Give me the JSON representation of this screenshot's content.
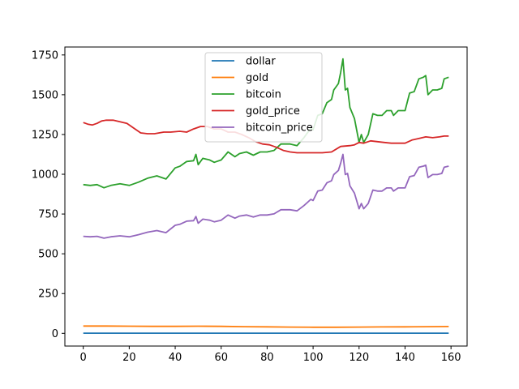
{
  "chart_data": {
    "type": "line",
    "title": "",
    "xlabel": "",
    "ylabel": "",
    "xlim": [
      -8,
      167
    ],
    "ylim": [
      -80,
      1800
    ],
    "xticks": [
      0,
      20,
      40,
      60,
      80,
      100,
      120,
      140,
      160
    ],
    "yticks": [
      0,
      250,
      500,
      750,
      1000,
      1250,
      1500,
      1750
    ],
    "legend_position": "top-center",
    "grid": false,
    "series": [
      {
        "name": "dollar",
        "color": "#1f77b4",
        "x": [
          0,
          20,
          40,
          60,
          80,
          100,
          120,
          140,
          159
        ],
        "y": [
          1,
          1,
          1,
          1,
          1,
          1,
          1,
          1,
          1
        ]
      },
      {
        "name": "gold",
        "color": "#ff7f0e",
        "x": [
          0,
          10,
          20,
          30,
          40,
          50,
          60,
          70,
          80,
          90,
          100,
          110,
          120,
          130,
          140,
          150,
          159
        ],
        "y": [
          46,
          46,
          45,
          44,
          44,
          45,
          44,
          42,
          41,
          39,
          38,
          38,
          39,
          40,
          41,
          42,
          43
        ]
      },
      {
        "name": "bitcoin",
        "color": "#2ca02c",
        "x": [
          0,
          3,
          6,
          9,
          12,
          16,
          20,
          24,
          28,
          32,
          36,
          40,
          42,
          45,
          48,
          49,
          50,
          52,
          55,
          57,
          60,
          63,
          66,
          68,
          71,
          74,
          77,
          80,
          83,
          86,
          90,
          93,
          96,
          99,
          100,
          102,
          104,
          106,
          108,
          109,
          111,
          112,
          113,
          114,
          115,
          116,
          118,
          120,
          121,
          122,
          124,
          126,
          128,
          130,
          132,
          134,
          135,
          137,
          139,
          140,
          142,
          144,
          146,
          148,
          149,
          150,
          152,
          154,
          156,
          157,
          159
        ],
        "y": [
          935,
          930,
          935,
          915,
          930,
          940,
          930,
          950,
          975,
          990,
          970,
          1040,
          1050,
          1080,
          1085,
          1125,
          1060,
          1100,
          1090,
          1075,
          1090,
          1140,
          1110,
          1130,
          1140,
          1120,
          1140,
          1140,
          1150,
          1190,
          1190,
          1180,
          1230,
          1290,
          1280,
          1370,
          1380,
          1450,
          1470,
          1530,
          1570,
          1640,
          1725,
          1530,
          1540,
          1420,
          1350,
          1200,
          1250,
          1200,
          1250,
          1380,
          1370,
          1370,
          1400,
          1400,
          1370,
          1400,
          1400,
          1400,
          1510,
          1520,
          1600,
          1610,
          1620,
          1500,
          1530,
          1530,
          1540,
          1600,
          1610
        ]
      },
      {
        "name": "gold_price",
        "color": "#d62728",
        "x": [
          0,
          2,
          4,
          6,
          8,
          10,
          13,
          16,
          19,
          22,
          25,
          28,
          31,
          35,
          38,
          42,
          45,
          48,
          51,
          54,
          57,
          60,
          63,
          66,
          69,
          72,
          75,
          78,
          81,
          84,
          87,
          90,
          93,
          96,
          100,
          104,
          108,
          112,
          116,
          118,
          120,
          122,
          125,
          128,
          131,
          134,
          137,
          140,
          143,
          146,
          149,
          152,
          155,
          157,
          159
        ],
        "y": [
          1325,
          1315,
          1310,
          1320,
          1335,
          1340,
          1340,
          1330,
          1320,
          1290,
          1260,
          1255,
          1255,
          1265,
          1265,
          1270,
          1265,
          1285,
          1300,
          1300,
          1285,
          1285,
          1265,
          1265,
          1250,
          1230,
          1205,
          1190,
          1185,
          1170,
          1150,
          1140,
          1135,
          1135,
          1135,
          1135,
          1140,
          1175,
          1180,
          1185,
          1200,
          1195,
          1210,
          1205,
          1200,
          1195,
          1195,
          1195,
          1215,
          1225,
          1235,
          1230,
          1235,
          1240,
          1240
        ]
      },
      {
        "name": "bitcoin_price",
        "color": "#9467bd",
        "x": [
          0,
          3,
          6,
          9,
          12,
          16,
          20,
          24,
          28,
          32,
          36,
          40,
          42,
          45,
          48,
          49,
          50,
          52,
          55,
          57,
          60,
          63,
          66,
          68,
          71,
          74,
          77,
          80,
          83,
          86,
          90,
          93,
          96,
          99,
          100,
          102,
          104,
          106,
          108,
          109,
          111,
          112,
          113,
          114,
          115,
          116,
          118,
          120,
          121,
          122,
          124,
          126,
          128,
          130,
          132,
          134,
          135,
          137,
          139,
          140,
          142,
          144,
          146,
          148,
          149,
          150,
          152,
          154,
          156,
          157,
          159
        ],
        "y": [
          610,
          607,
          610,
          598,
          607,
          613,
          607,
          620,
          636,
          646,
          633,
          679,
          685,
          705,
          708,
          734,
          692,
          718,
          711,
          701,
          711,
          744,
          724,
          737,
          744,
          731,
          744,
          744,
          751,
          777,
          777,
          770,
          803,
          842,
          835,
          894,
          901,
          946,
          959,
          998,
          1024,
          1070,
          1125,
          998,
          1005,
          927,
          881,
          783,
          816,
          783,
          816,
          901,
          894,
          894,
          914,
          914,
          894,
          914,
          914,
          914,
          985,
          992,
          1044,
          1051,
          1057,
          979,
          998,
          998,
          1005,
          1044,
          1051
        ]
      }
    ]
  }
}
